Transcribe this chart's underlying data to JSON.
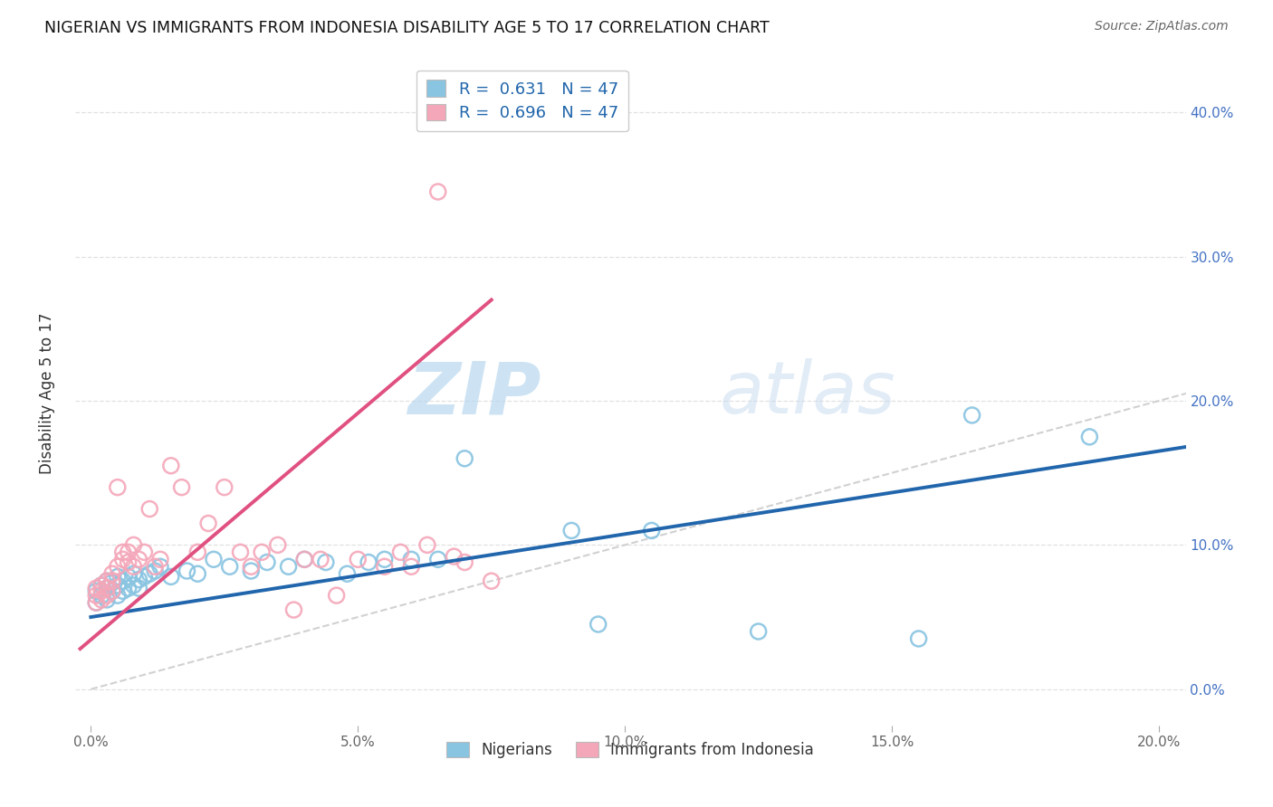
{
  "title": "NIGERIAN VS IMMIGRANTS FROM INDONESIA DISABILITY AGE 5 TO 17 CORRELATION CHART",
  "source": "Source: ZipAtlas.com",
  "ylabel": "Disability Age 5 to 17",
  "xlim": [
    -0.003,
    0.205
  ],
  "ylim": [
    -0.025,
    0.435
  ],
  "xtick_vals": [
    0.0,
    0.05,
    0.1,
    0.15,
    0.2
  ],
  "xtick_labels": [
    "0.0%",
    "5.0%",
    "10.0%",
    "15.0%",
    "20.0%"
  ],
  "ytick_vals": [
    0.0,
    0.1,
    0.2,
    0.3,
    0.4
  ],
  "ytick_labels": [
    "0.0%",
    "10.0%",
    "20.0%",
    "30.0%",
    "40.0%"
  ],
  "legend_r_blue": "0.631",
  "legend_r_pink": "0.696",
  "legend_n": "47",
  "blue_scatter": "#89c4e1",
  "pink_scatter": "#f4a7b9",
  "line_blue": "#2166ac",
  "line_pink": "#e05080",
  "diag_color": "#cccccc",
  "watermark_zip": "ZIP",
  "watermark_atlas": "atlas",
  "nigerians_x": [
    0.001,
    0.001,
    0.002,
    0.002,
    0.003,
    0.003,
    0.003,
    0.004,
    0.004,
    0.005,
    0.005,
    0.005,
    0.006,
    0.006,
    0.007,
    0.007,
    0.008,
    0.008,
    0.009,
    0.009,
    0.01,
    0.011,
    0.012,
    0.013,
    0.015,
    0.018,
    0.02,
    0.023,
    0.026,
    0.03,
    0.033,
    0.037,
    0.04,
    0.044,
    0.048,
    0.052,
    0.055,
    0.06,
    0.065,
    0.07,
    0.09,
    0.095,
    0.105,
    0.125,
    0.155,
    0.165,
    0.187
  ],
  "nigerians_y": [
    0.06,
    0.068,
    0.065,
    0.072,
    0.062,
    0.07,
    0.075,
    0.068,
    0.074,
    0.065,
    0.072,
    0.078,
    0.068,
    0.075,
    0.07,
    0.078,
    0.072,
    0.08,
    0.07,
    0.076,
    0.078,
    0.08,
    0.082,
    0.085,
    0.078,
    0.082,
    0.08,
    0.09,
    0.085,
    0.082,
    0.088,
    0.085,
    0.09,
    0.088,
    0.08,
    0.088,
    0.09,
    0.09,
    0.09,
    0.16,
    0.11,
    0.045,
    0.11,
    0.04,
    0.035,
    0.19,
    0.175
  ],
  "indonesia_x": [
    0.001,
    0.001,
    0.001,
    0.002,
    0.002,
    0.002,
    0.003,
    0.003,
    0.003,
    0.004,
    0.004,
    0.004,
    0.005,
    0.005,
    0.006,
    0.006,
    0.007,
    0.007,
    0.008,
    0.008,
    0.009,
    0.01,
    0.011,
    0.012,
    0.013,
    0.015,
    0.017,
    0.02,
    0.022,
    0.025,
    0.028,
    0.03,
    0.032,
    0.035,
    0.038,
    0.04,
    0.043,
    0.046,
    0.05,
    0.055,
    0.058,
    0.06,
    0.063,
    0.065,
    0.068,
    0.07,
    0.075
  ],
  "indonesia_y": [
    0.06,
    0.065,
    0.07,
    0.062,
    0.068,
    0.072,
    0.065,
    0.07,
    0.075,
    0.068,
    0.075,
    0.08,
    0.14,
    0.085,
    0.09,
    0.095,
    0.088,
    0.095,
    0.1,
    0.085,
    0.09,
    0.095,
    0.125,
    0.085,
    0.09,
    0.155,
    0.14,
    0.095,
    0.115,
    0.14,
    0.095,
    0.085,
    0.095,
    0.1,
    0.055,
    0.09,
    0.09,
    0.065,
    0.09,
    0.085,
    0.095,
    0.085,
    0.1,
    0.345,
    0.092,
    0.088,
    0.075
  ],
  "blue_trendline_x": [
    0.0,
    0.205
  ],
  "blue_trendline_y": [
    0.05,
    0.168
  ],
  "pink_trendline_x": [
    -0.002,
    0.075
  ],
  "pink_trendline_y": [
    0.028,
    0.27
  ]
}
